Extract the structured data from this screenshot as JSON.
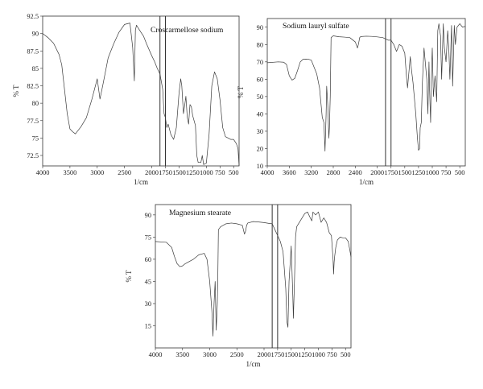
{
  "chart_data": [
    {
      "type": "line",
      "title": "Croscarmellose sodium",
      "xlabel": "1/cm",
      "ylabel": "% T",
      "xlim": [
        4000,
        400
      ],
      "ylim": [
        71,
        92.5
      ],
      "xticks": [
        "4000",
        "3500",
        "3000",
        "2500",
        "2000",
        "1750",
        "1500",
        "1250",
        "1000",
        "750",
        "500"
      ],
      "yticks": [
        "72.5",
        "75",
        "77.5",
        "80",
        "82.5",
        "85",
        "87.5",
        "90",
        "92.5"
      ],
      "markers": [
        1850,
        1750
      ],
      "series": [
        {
          "x": [
            4000,
            3900,
            3800,
            3700,
            3650,
            3600,
            3550,
            3500,
            3450,
            3400,
            3300,
            3200,
            3100,
            3000,
            2950,
            2900,
            2800,
            2700,
            2600,
            2500,
            2450,
            2400,
            2350,
            2320,
            2300,
            2280,
            2250,
            2200,
            2150,
            2100,
            2000,
            1950,
            1900,
            1850,
            1800,
            1775,
            1750,
            1725,
            1700,
            1650,
            1600,
            1550,
            1500,
            1470,
            1450,
            1420,
            1400,
            1375,
            1350,
            1325,
            1300,
            1275,
            1250,
            1225,
            1200,
            1175,
            1150,
            1100,
            1075,
            1050,
            1000,
            950,
            900,
            850,
            800,
            775,
            750,
            725,
            700,
            650,
            600,
            550,
            500,
            450,
            420,
            400
          ],
          "y": [
            90.0,
            89.4,
            88.6,
            87.0,
            85.5,
            82.0,
            78.5,
            76.3,
            75.9,
            75.6,
            76.6,
            77.9,
            80.5,
            83.5,
            80.6,
            82.5,
            86.5,
            88.5,
            90.2,
            91.3,
            91.4,
            91.5,
            88.0,
            83.2,
            90.5,
            91.2,
            90.8,
            90.2,
            89.6,
            88.6,
            86.8,
            86.0,
            85.0,
            84.2,
            82.0,
            78.5,
            77.9,
            76.5,
            77.0,
            75.5,
            74.8,
            76.5,
            81.5,
            83.5,
            82.5,
            78.5,
            79.5,
            81.0,
            78.0,
            77.0,
            79.8,
            79.5,
            78.2,
            77.5,
            76.8,
            72.5,
            71.5,
            71.5,
            72.5,
            71.2,
            71.4,
            75.5,
            82.5,
            84.5,
            83.5,
            82.0,
            80.5,
            78.5,
            76.5,
            75.2,
            75.0,
            74.8,
            74.8,
            74.2,
            73.5,
            71.0
          ]
        }
      ]
    },
    {
      "type": "line",
      "title": "Sodium lauryl sulfate",
      "xlabel": "1/cm",
      "ylabel": "% T",
      "xlim": [
        4000,
        400
      ],
      "ylim": [
        10,
        95
      ],
      "xticks": [
        "4000",
        "3600",
        "3200",
        "2800",
        "2400",
        "2000",
        "1750",
        "1500",
        "1250",
        "1000",
        "750",
        "500"
      ],
      "yticks": [
        "10",
        "20",
        "30",
        "40",
        "50",
        "60",
        "70",
        "80",
        "90"
      ],
      "markers": [
        1850,
        1750
      ],
      "series": [
        {
          "x": [
            4000,
            3800,
            3700,
            3650,
            3600,
            3550,
            3500,
            3450,
            3400,
            3350,
            3300,
            3250,
            3200,
            3100,
            3050,
            3000,
            2970,
            2950,
            2930,
            2920,
            2900,
            2880,
            2870,
            2855,
            2840,
            2800,
            2700,
            2600,
            2500,
            2400,
            2360,
            2340,
            2320,
            2300,
            2200,
            2100,
            2000,
            1900,
            1800,
            1750,
            1700,
            1650,
            1600,
            1550,
            1500,
            1470,
            1450,
            1400,
            1380,
            1350,
            1300,
            1270,
            1250,
            1230,
            1220,
            1200,
            1180,
            1150,
            1100,
            1080,
            1060,
            1050,
            1030,
            1020,
            1000,
            980,
            950,
            920,
            900,
            880,
            850,
            830,
            800,
            780,
            750,
            720,
            700,
            680,
            650,
            630,
            600,
            580,
            550,
            500,
            450,
            400
          ],
          "y": [
            69.5,
            70.0,
            69.8,
            68.5,
            62.0,
            59.5,
            60.5,
            65.0,
            70.0,
            71.5,
            71.6,
            71.5,
            71.0,
            63.0,
            55.0,
            38.0,
            35.0,
            18.5,
            40.0,
            56.0,
            45.0,
            26.0,
            32.0,
            50.0,
            84.0,
            85.0,
            84.5,
            84.3,
            84.0,
            81.5,
            78.0,
            80.5,
            84.0,
            84.6,
            84.8,
            84.7,
            84.4,
            84.0,
            82.5,
            82.5,
            80.0,
            76.0,
            80.0,
            79.0,
            75.0,
            62.0,
            55.0,
            73.0,
            66.0,
            58.0,
            40.0,
            26.0,
            19.0,
            20.0,
            32.0,
            35.0,
            58.0,
            78.0,
            60.0,
            40.0,
            70.0,
            55.0,
            35.0,
            58.0,
            78.0,
            50.0,
            62.0,
            47.0,
            88.0,
            92.0,
            85.0,
            60.0,
            92.0,
            78.0,
            70.0,
            88.0,
            78.0,
            60.0,
            91.0,
            56.0,
            91.0,
            80.0,
            90.0,
            92.0,
            90.0,
            90.5
          ]
        }
      ]
    },
    {
      "type": "line",
      "title": "Magnesium stearate",
      "xlabel": "1/cm",
      "ylabel": "% T",
      "xlim": [
        4000,
        400
      ],
      "ylim": [
        0,
        97
      ],
      "xticks": [
        "4000",
        "3500",
        "3000",
        "2500",
        "2000",
        "1750",
        "1500",
        "1250",
        "1000",
        "750",
        "500"
      ],
      "yticks": [
        "15",
        "30",
        "45",
        "60",
        "75",
        "90"
      ],
      "markers": [
        1850,
        1750
      ],
      "series": [
        {
          "x": [
            4000,
            3800,
            3700,
            3650,
            3600,
            3550,
            3500,
            3450,
            3400,
            3300,
            3200,
            3100,
            3050,
            3000,
            2960,
            2940,
            2920,
            2900,
            2880,
            2860,
            2850,
            2840,
            2800,
            2700,
            2600,
            2500,
            2400,
            2360,
            2340,
            2320,
            2300,
            2200,
            2100,
            2000,
            1900,
            1850,
            1800,
            1750,
            1700,
            1650,
            1600,
            1580,
            1560,
            1540,
            1500,
            1470,
            1460,
            1440,
            1420,
            1400,
            1350,
            1300,
            1250,
            1200,
            1150,
            1120,
            1100,
            1050,
            1000,
            950,
            900,
            850,
            800,
            760,
            730,
            720,
            710,
            700,
            680,
            650,
            600,
            550,
            500,
            450,
            420,
            400
          ],
          "y": [
            72.0,
            71.5,
            68.0,
            62.0,
            57.0,
            55.0,
            55.5,
            57.0,
            58.0,
            60.0,
            63.0,
            64.0,
            60.0,
            45.0,
            25.0,
            8.0,
            30.0,
            45.0,
            12.0,
            30.0,
            50.0,
            80.0,
            82.0,
            84.0,
            84.5,
            84.0,
            83.0,
            77.0,
            79.0,
            83.0,
            84.5,
            85.5,
            85.2,
            84.8,
            84.2,
            84.0,
            80.0,
            76.0,
            72.0,
            65.0,
            40.0,
            18.0,
            14.0,
            45.0,
            69.0,
            35.0,
            20.0,
            45.0,
            75.0,
            82.0,
            85.0,
            88.0,
            91.0,
            92.0,
            88.0,
            86.0,
            92.0,
            90.0,
            92.0,
            85.0,
            88.0,
            85.0,
            78.0,
            76.0,
            60.0,
            50.0,
            58.0,
            62.0,
            68.0,
            73.0,
            75.0,
            74.5,
            74.5,
            72.0,
            66.0,
            61.5
          ]
        }
      ]
    }
  ]
}
